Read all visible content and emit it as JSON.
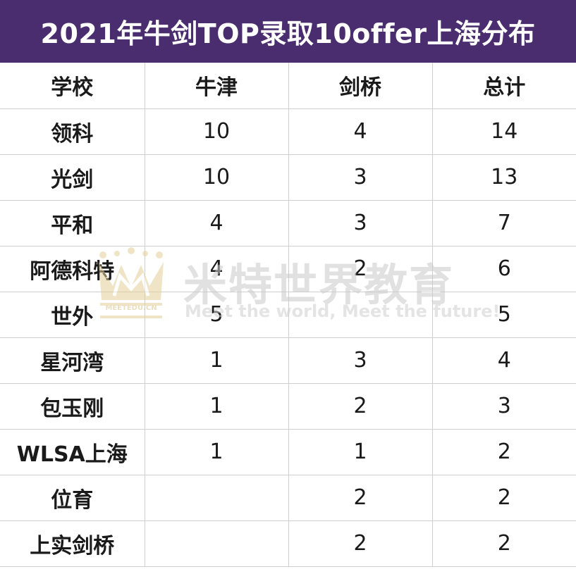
{
  "title": "2021年牛剑TOP录取10offer上海分布",
  "table": {
    "headers": [
      "学校",
      "牛津",
      "剑桥",
      "总计"
    ],
    "rows": [
      {
        "school": "领科",
        "oxford": "10",
        "cambridge": "4",
        "total": "14"
      },
      {
        "school": "光剑",
        "oxford": "10",
        "cambridge": "3",
        "total": "13"
      },
      {
        "school": "平和",
        "oxford": "4",
        "cambridge": "3",
        "total": "7"
      },
      {
        "school": "阿德科特",
        "oxford": "4",
        "cambridge": "2",
        "total": "6"
      },
      {
        "school": "世外",
        "oxford": "5",
        "cambridge": "",
        "total": "5"
      },
      {
        "school": "星河湾",
        "oxford": "1",
        "cambridge": "3",
        "total": "4"
      },
      {
        "school": "包玉刚",
        "oxford": "1",
        "cambridge": "2",
        "total": "3"
      },
      {
        "school": "WLSA上海",
        "oxford": "1",
        "cambridge": "1",
        "total": "2"
      },
      {
        "school": "位育",
        "oxford": "",
        "cambridge": "2",
        "total": "2"
      },
      {
        "school": "上实剑桥",
        "oxford": "",
        "cambridge": "2",
        "total": "2"
      }
    ]
  },
  "watermark": {
    "cn": "米特世界教育",
    "en": "Meet the world, Meet the future!",
    "brand": "MEETEDU.CN",
    "logo_icon": "crown-icon"
  },
  "colors": {
    "title_bg": "#4a2d6e",
    "title_text": "#ffffff",
    "grid_line": "#cfcfcf",
    "watermark_gold": "#d9c48a"
  }
}
